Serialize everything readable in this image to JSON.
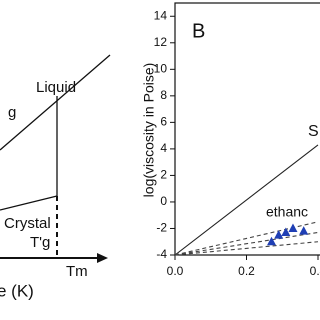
{
  "left_panel": {
    "liquid": "Liquid",
    "glass": "g",
    "crystal": "Crystal",
    "tg": "T'g",
    "tm": "Tm",
    "x_label": "e (K)"
  },
  "chart_data": {
    "type": "line",
    "panel_label": "B",
    "y_label": "log(viscosity in Poise)",
    "annotations": [
      "S",
      "ethanc"
    ],
    "xlim": [
      0,
      0.4
    ],
    "xticks": [
      {
        "value": 0,
        "label": "0.0"
      },
      {
        "value": 0.2,
        "label": "0.2"
      },
      {
        "value": 0.4,
        "label": "0.4"
      }
    ],
    "ylim": [
      -4,
      15
    ],
    "yticks": [
      -4,
      -2,
      0,
      2,
      4,
      6,
      8,
      10,
      12,
      14
    ],
    "grid": false,
    "series": [
      {
        "style": "solid",
        "color": "#222222",
        "x": [
          0,
          0.4
        ],
        "values": [
          -4,
          4.3
        ]
      },
      {
        "style": "dashed",
        "color": "#444444",
        "x": [
          0,
          0.4
        ],
        "values": [
          -4,
          -1.5
        ]
      },
      {
        "style": "dashed",
        "color": "#444444",
        "x": [
          0,
          0.4
        ],
        "values": [
          -4,
          -2.3
        ]
      },
      {
        "style": "dashed",
        "color": "#444444",
        "x": [
          0,
          0.4
        ],
        "values": [
          -4,
          -3
        ]
      },
      {
        "style": "marker",
        "color": "#1f3fb5",
        "x": [
          0.27,
          0.29,
          0.31,
          0.33,
          0.36
        ],
        "values": [
          -3,
          -2.5,
          -2.3,
          -2,
          -2.2
        ]
      }
    ]
  }
}
